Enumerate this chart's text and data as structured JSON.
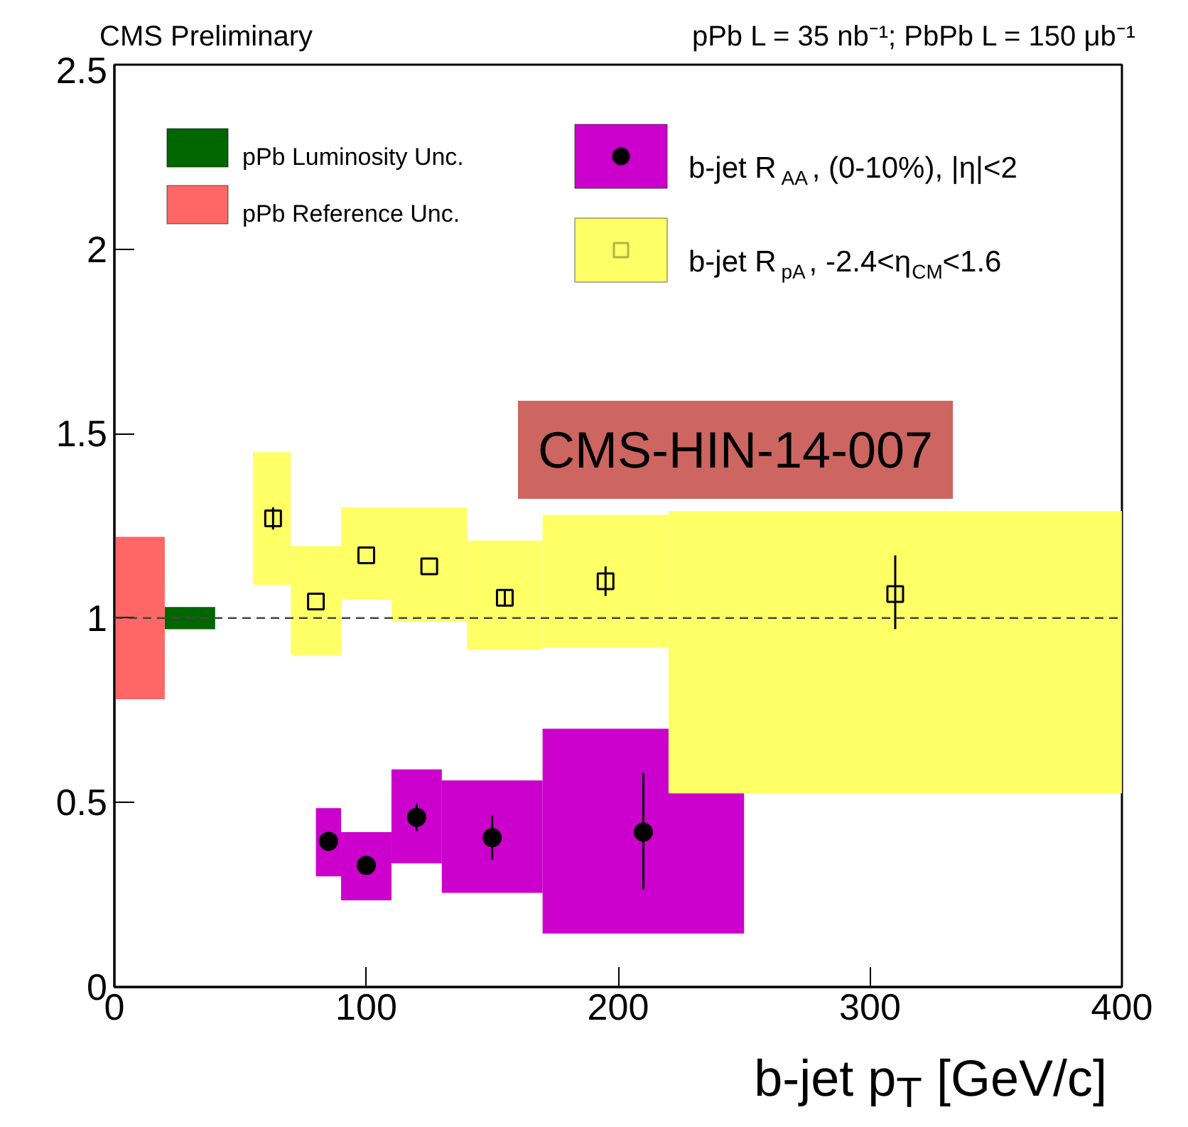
{
  "chart_data": {
    "type": "histogram",
    "title": "CMS Preliminary",
    "subtitle": "pPb L = 35 nb⁻¹; PbPb L = 150 μb⁻¹",
    "xlabel": "b-jet p$_{T}$ [GeV/c]",
    "annotations": [
      "CMS-HIN-14-007"
    ],
    "xlim": [
      0,
      400
    ],
    "xticks": [
      0,
      100,
      200,
      300,
      400
    ],
    "ylim": [
      0,
      2.5
    ],
    "yticks": [
      0,
      0.5,
      1,
      1.5,
      2,
      2.5
    ],
    "grid": false,
    "legend": "top",
    "ref_lines": [
      {
        "axis": "y",
        "value": 1,
        "line_style": "dashed",
        "color": "#444444"
      }
    ],
    "series": [
      {
        "name": "pPb Luminosity Unc.",
        "color": "#006600",
        "bins": [
          20,
          40
        ],
        "base": [
          0.97
        ],
        "values": [
          0.06
        ]
      },
      {
        "name": "pPb Reference Unc.",
        "color": "#ff6666",
        "bins": [
          0,
          20
        ],
        "base": [
          0.78
        ],
        "values": [
          0.44
        ]
      },
      {
        "name": "b-jet R$_{AA}$, (0-10%), |η|<2",
        "color": "#cc00cc",
        "bins": [
          80,
          90,
          110,
          130,
          170,
          250
        ],
        "base": [
          0.3,
          0.235,
          0.335,
          0.255,
          0.145
        ],
        "values": [
          0.185,
          0.185,
          0.255,
          0.305,
          0.555
        ]
      },
      {
        "type": "scatter",
        "color": "#000000",
        "marker": "circle",
        "x": [
          85,
          100,
          120,
          150,
          210
        ],
        "values": [
          0.395,
          0.33,
          0.46,
          0.405,
          0.42
        ],
        "errors": [
          null,
          null,
          0.037,
          0.06,
          [
            0.265,
            0.58
          ]
        ]
      },
      {
        "name": "b-jet R$_{pA}$, -2.4<η$_{CM}$<1.6",
        "color": "#ffff66",
        "bins": [
          55,
          70,
          90,
          110,
          140,
          170,
          220,
          400
        ],
        "base": [
          1.09,
          0.9,
          1.05,
          0.99,
          0.915,
          0.92,
          0.525
        ],
        "values": [
          0.36,
          0.295,
          0.25,
          0.31,
          0.295,
          0.36,
          0.765
        ]
      },
      {
        "type": "scatter",
        "color": "#000000",
        "marker": "square",
        "x": [
          63,
          80,
          100,
          125,
          155,
          195,
          310
        ],
        "values": [
          1.27,
          1.045,
          1.17,
          1.14,
          1.055,
          1.1,
          1.065
        ],
        "errors": [
          0.03,
          null,
          null,
          null,
          0.02,
          [
            1.06,
            1.14
          ],
          [
            0.97,
            1.17
          ]
        ]
      }
    ]
  }
}
